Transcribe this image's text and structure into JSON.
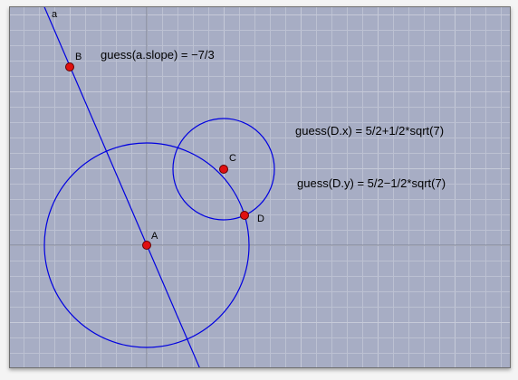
{
  "colors": {
    "background": "#a7adc4",
    "grid_minor": "#bcc1d2",
    "grid_major": "#c6cad8",
    "axis": "#7d8195",
    "curves": "#0000e0",
    "point_fill": "#e01010",
    "point_stroke": "#600000"
  },
  "line": {
    "label": "a"
  },
  "points": {
    "A": {
      "label": "A"
    },
    "B": {
      "label": "B"
    },
    "C": {
      "label": "C"
    },
    "D": {
      "label": "D"
    }
  },
  "annotations": {
    "slope": "guess(a.slope) = −7/3",
    "dx": "guess(D.x) = 5/2+1/2*sqrt(7)",
    "dy": "guess(D.y) = 5/2−1/2*sqrt(7)"
  }
}
